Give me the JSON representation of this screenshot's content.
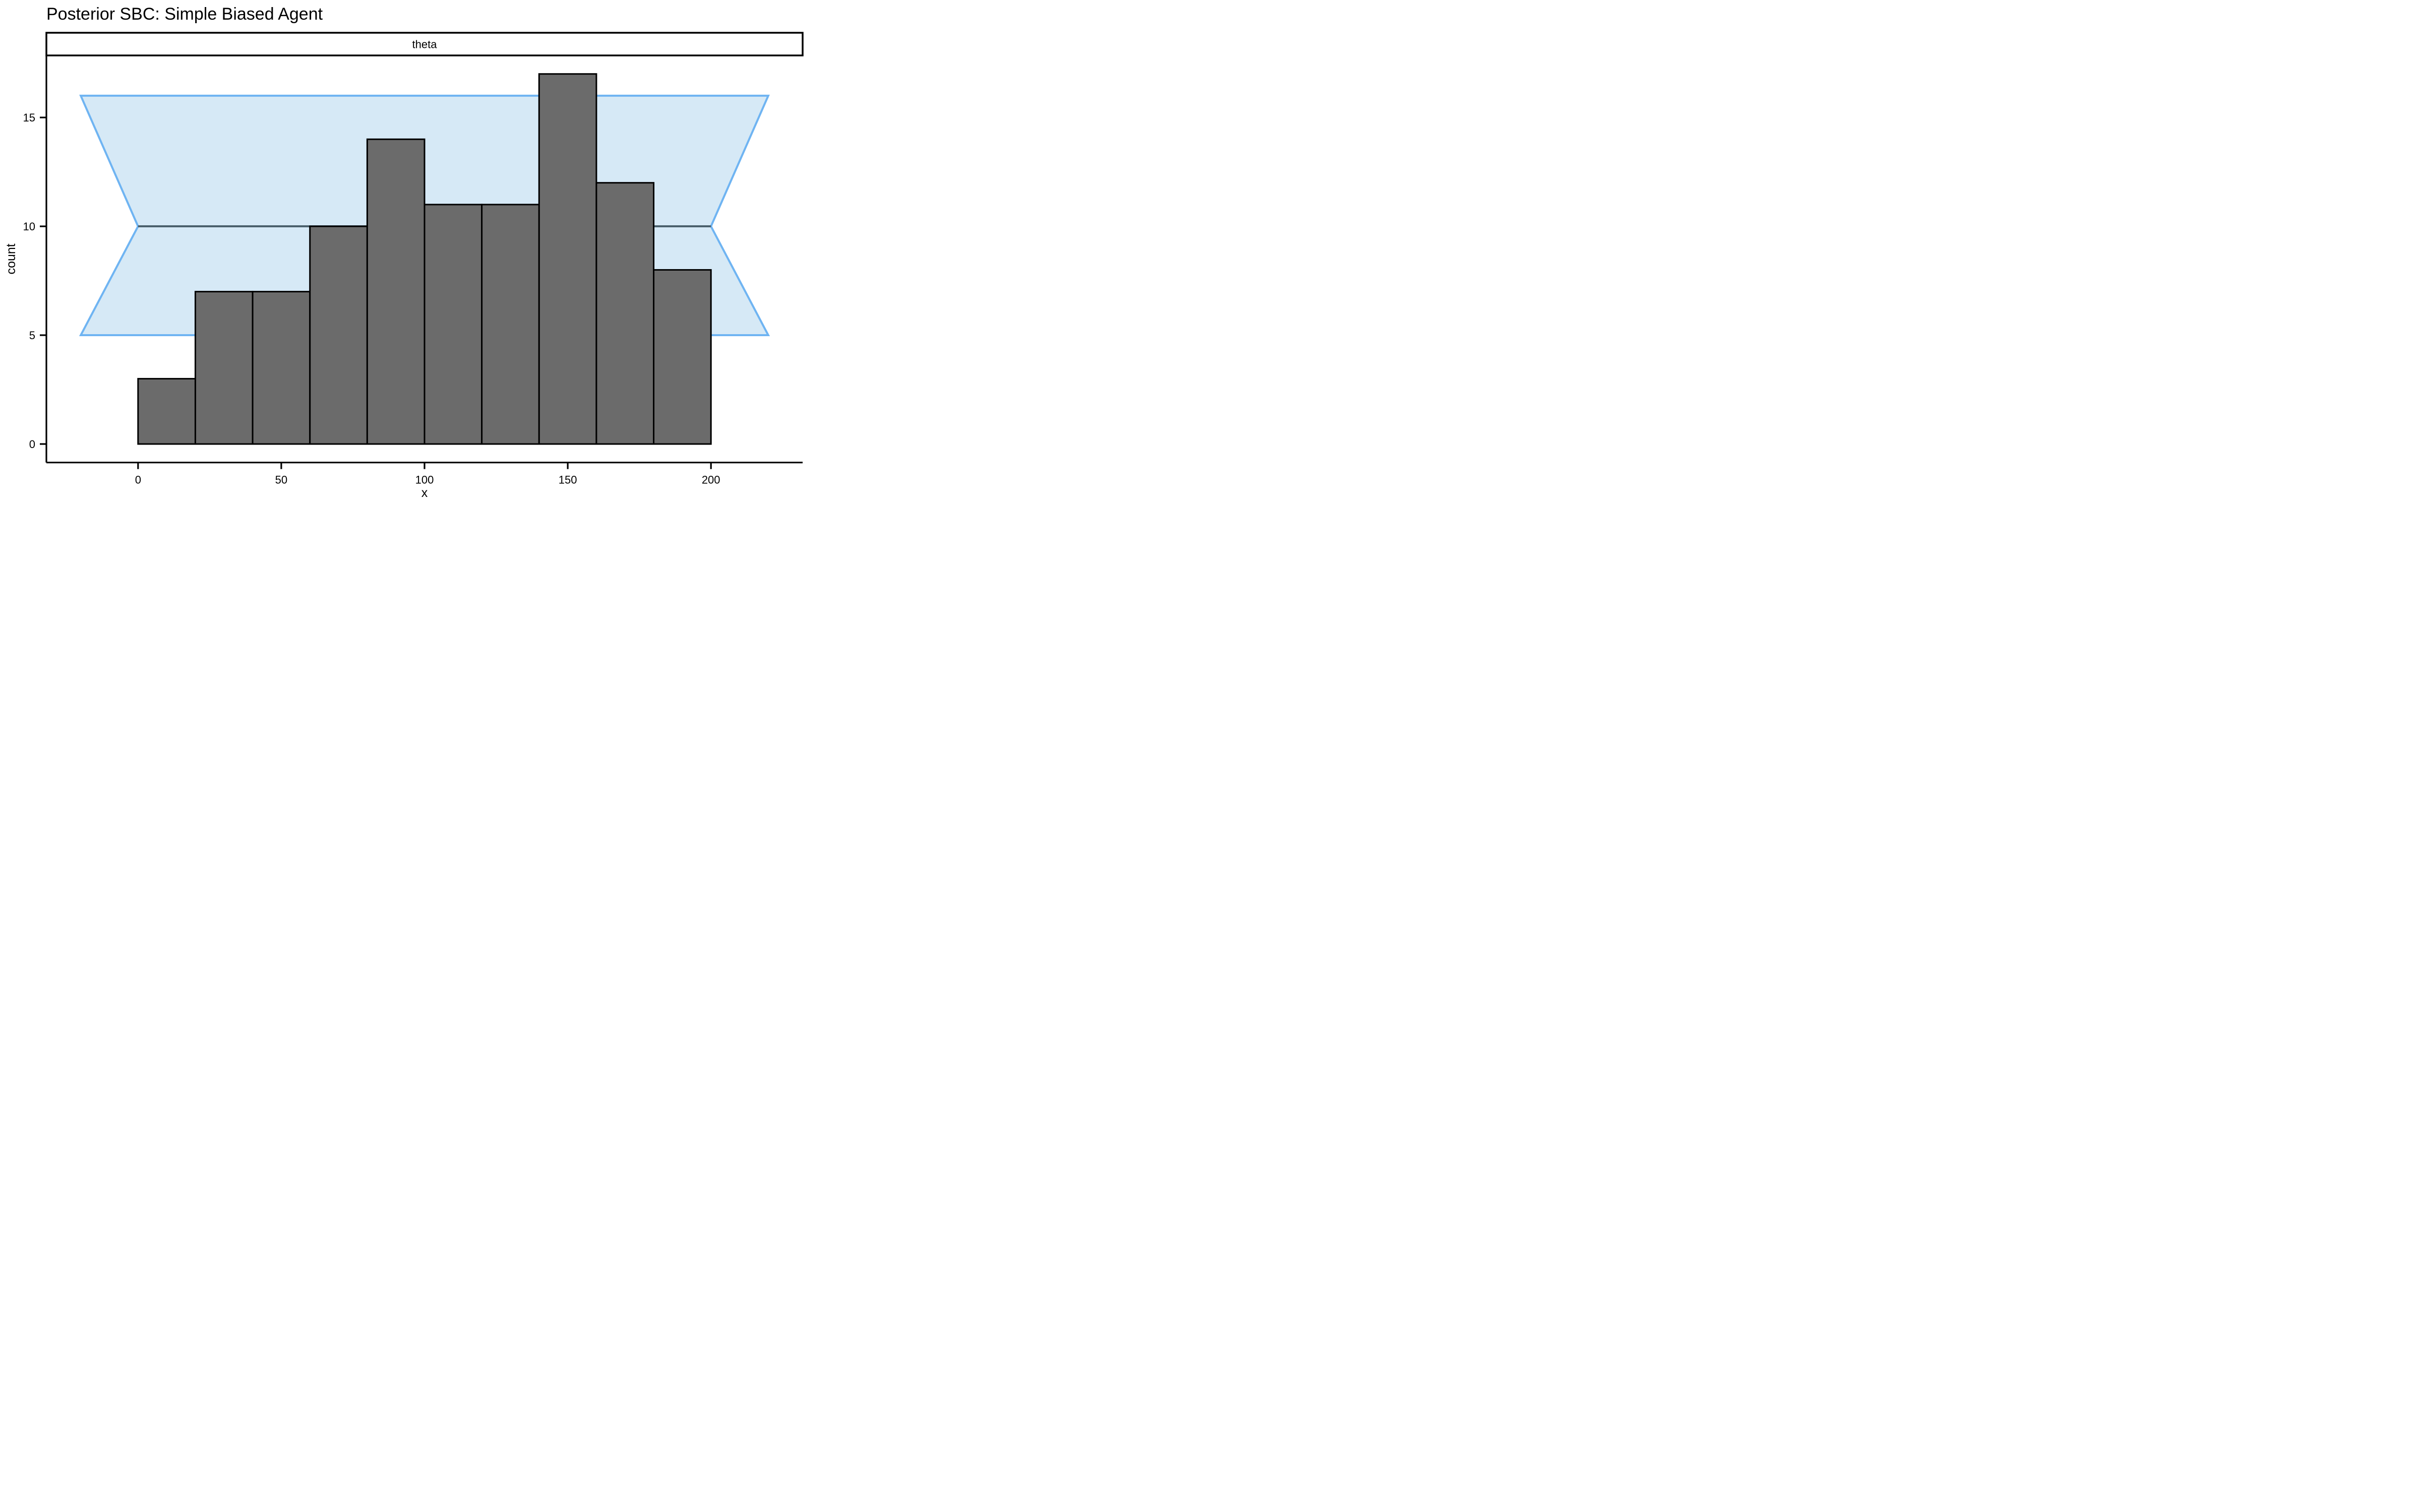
{
  "title": "Posterior SBC: Simple Biased Agent",
  "facet_label": "theta",
  "x_axis": {
    "title": "x",
    "tick_labels": [
      "0",
      "50",
      "100",
      "150",
      "200"
    ],
    "tick_values": [
      0,
      50,
      100,
      150,
      200
    ]
  },
  "y_axis": {
    "title": "count",
    "tick_labels": [
      "0",
      "5",
      "10",
      "15"
    ],
    "tick_values": [
      0,
      5,
      10,
      15
    ]
  },
  "colors": {
    "background": "#ffffff",
    "bar_fill": "#6b6b6b",
    "bar_stroke": "#000000",
    "band_fill": "#d6e9f6",
    "band_stroke": "#6fb4f2",
    "expected_line": "#4a606c",
    "axis": "#000000",
    "strip_fill": "#ffffff",
    "strip_stroke": "#000000",
    "text": "#000000"
  },
  "chart_data": {
    "type": "bar",
    "subtype": "histogram",
    "title": "Posterior SBC: Simple Biased Agent",
    "facet_label": "theta",
    "xlabel": "x",
    "ylabel": "count",
    "bin_width": 20,
    "bin_edges": [
      0,
      20,
      40,
      60,
      80,
      100,
      120,
      140,
      160,
      180,
      200
    ],
    "categories": [
      "0-20",
      "20-40",
      "40-60",
      "60-80",
      "80-100",
      "100-120",
      "120-140",
      "140-160",
      "160-180",
      "180-200"
    ],
    "values": [
      3,
      7,
      7,
      10,
      14,
      11,
      11,
      17,
      12,
      8
    ],
    "x_ticks": [
      0,
      50,
      100,
      150,
      200
    ],
    "y_ticks": [
      0,
      5,
      10,
      15
    ],
    "xlim": [
      -32,
      232
    ],
    "ylim": [
      -0.85,
      17.85
    ],
    "grid": false,
    "legend": "none",
    "expected_count_line": {
      "y": 10,
      "x_start": 0,
      "x_end": 200
    },
    "confidence_band_polygon": [
      [
        -20,
        5
      ],
      [
        0,
        10
      ],
      [
        -20,
        16
      ],
      [
        220,
        16
      ],
      [
        200,
        10
      ],
      [
        220,
        5
      ]
    ]
  }
}
